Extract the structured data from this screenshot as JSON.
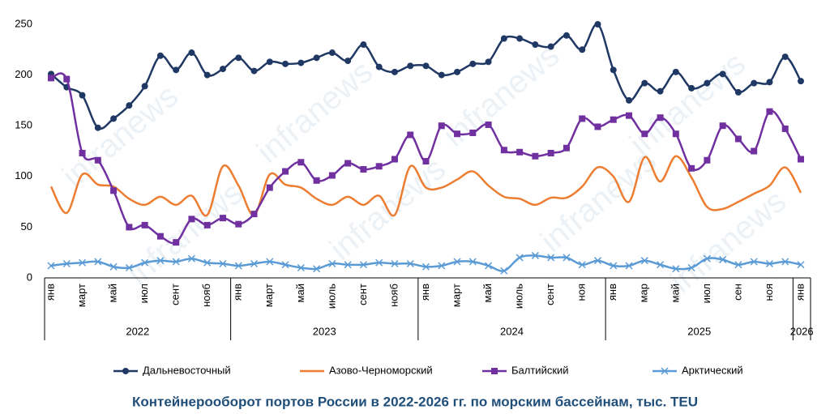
{
  "chart_data": {
    "type": "line",
    "title": "Контейнерооборот портов России в 2022-2026 гг. по морским бассейнам, тыс. TEU",
    "watermark": "infranews",
    "categories": [
      "янв",
      null,
      "март",
      null,
      "май",
      null,
      "июл",
      null,
      "сент",
      null,
      "нояб",
      null,
      "янв",
      null,
      "март",
      null,
      "май",
      null,
      "июль",
      null,
      "сент",
      null,
      "нояб",
      null,
      "янв",
      null,
      "март",
      null,
      "май",
      null,
      "июль",
      null,
      "сент",
      null,
      "ноя",
      null,
      "янв",
      null,
      "мар",
      null,
      "май",
      null,
      "июл",
      null,
      "сен",
      null,
      "ноя",
      null,
      "янв"
    ],
    "year_groups": [
      "2022",
      "2023",
      "2024",
      "2025",
      "2026"
    ],
    "ylim": [
      0,
      250
    ],
    "yticks": [
      0,
      50,
      100,
      150,
      200,
      250
    ],
    "grid": false,
    "legend": "bottom",
    "series": [
      {
        "name": "Дальневосточный",
        "color": "#203864",
        "marker": "circle",
        "values": [
          201,
          188,
          180,
          148,
          157,
          170,
          189,
          219,
          205,
          222,
          200,
          206,
          217,
          204,
          213,
          211,
          212,
          217,
          222,
          214,
          230,
          208,
          203,
          209,
          209,
          200,
          203,
          211,
          213,
          236,
          236,
          230,
          228,
          239,
          225,
          250,
          205,
          175,
          192,
          184,
          203,
          187,
          192,
          201,
          183,
          192,
          193,
          218,
          194
        ]
      },
      {
        "name": "Азово-Черноморский",
        "color": "#ed7d31",
        "marker": "none",
        "values": [
          90,
          64,
          102,
          92,
          90,
          78,
          72,
          80,
          72,
          81,
          62,
          110,
          91,
          62,
          102,
          92,
          89,
          78,
          72,
          80,
          72,
          81,
          62,
          110,
          89,
          89,
          97,
          105,
          91,
          80,
          78,
          72,
          79,
          79,
          90,
          109,
          100,
          75,
          119,
          95,
          120,
          99,
          70,
          68,
          75,
          83,
          91,
          109,
          84
        ]
      },
      {
        "name": "Балтийский",
        "color": "#7030a0",
        "marker": "square",
        "values": [
          197,
          196,
          123,
          116,
          86,
          50,
          52,
          41,
          35,
          58,
          52,
          59,
          53,
          63,
          89,
          105,
          114,
          96,
          101,
          113,
          107,
          110,
          117,
          141,
          115,
          150,
          142,
          143,
          151,
          126,
          124,
          120,
          123,
          128,
          157,
          149,
          156,
          160,
          142,
          158,
          142,
          108,
          116,
          150,
          137,
          125,
          164,
          147,
          117
        ]
      },
      {
        "name": "Арктический",
        "color": "#5b9bd5",
        "marker": "x",
        "values": [
          12,
          14,
          15,
          16,
          11,
          10,
          15,
          17,
          16,
          19,
          15,
          14,
          12,
          14,
          16,
          13,
          10,
          9,
          14,
          13,
          13,
          15,
          14,
          14,
          11,
          12,
          16,
          16,
          12,
          7,
          20,
          22,
          20,
          20,
          13,
          17,
          12,
          12,
          17,
          13,
          9,
          10,
          19,
          18,
          13,
          16,
          14,
          16,
          13
        ]
      }
    ]
  }
}
